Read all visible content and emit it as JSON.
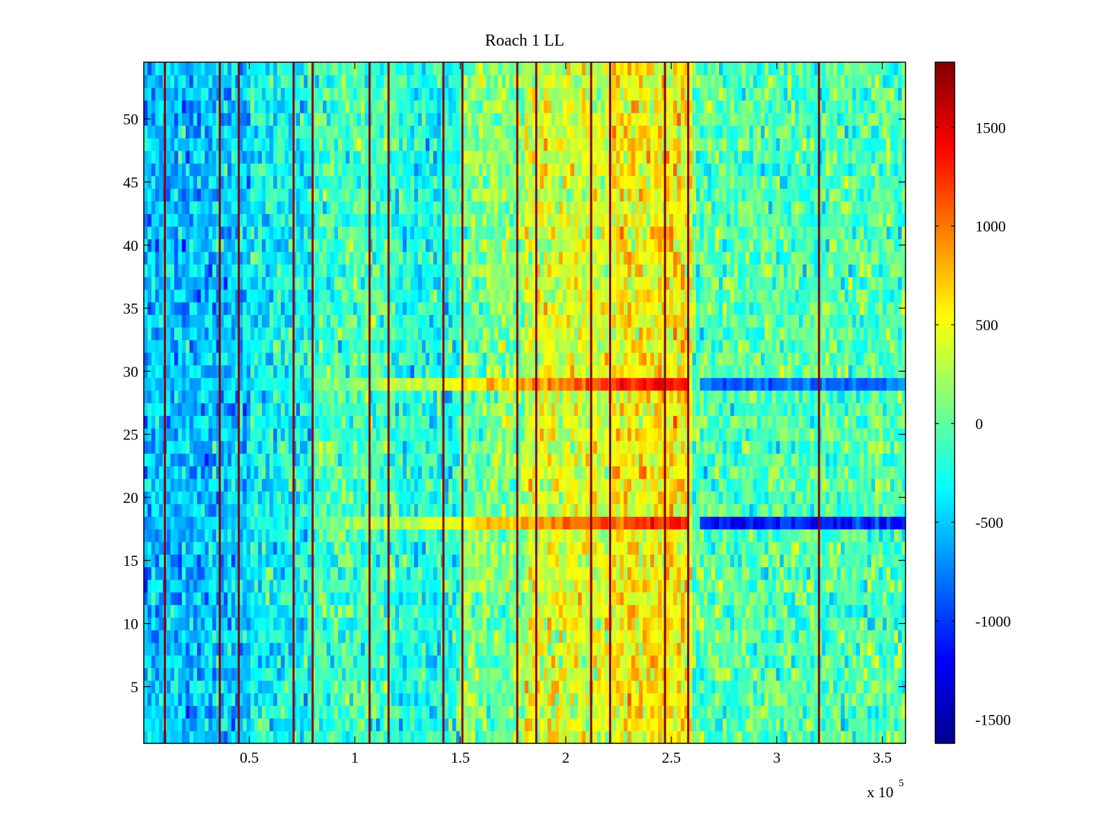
{
  "chart_data": {
    "type": "heatmap",
    "title": "Roach 1 LL",
    "x_range": [
      0,
      361000
    ],
    "y_range": [
      0.5,
      54.5
    ],
    "x_multiplier_label": {
      "prefix": "x 10",
      "exponent": "5"
    },
    "x_ticks": [
      {
        "value": 50000,
        "label": "0.5"
      },
      {
        "value": 100000,
        "label": "1"
      },
      {
        "value": 150000,
        "label": "1.5"
      },
      {
        "value": 200000,
        "label": "2"
      },
      {
        "value": 250000,
        "label": "2.5"
      },
      {
        "value": 300000,
        "label": "3"
      },
      {
        "value": 350000,
        "label": "3.5"
      }
    ],
    "y_ticks": [
      {
        "value": 5,
        "label": "5"
      },
      {
        "value": 10,
        "label": "10"
      },
      {
        "value": 15,
        "label": "15"
      },
      {
        "value": 20,
        "label": "20"
      },
      {
        "value": 25,
        "label": "25"
      },
      {
        "value": 30,
        "label": "30"
      },
      {
        "value": 35,
        "label": "35"
      },
      {
        "value": 40,
        "label": "40"
      },
      {
        "value": 45,
        "label": "45"
      },
      {
        "value": 50,
        "label": "50"
      }
    ],
    "colorbar": {
      "colormap": "jet",
      "range": [
        -1620,
        1830
      ],
      "ticks": [
        {
          "value": 1500,
          "label": "1500"
        },
        {
          "value": 1000,
          "label": "1000"
        },
        {
          "value": 500,
          "label": "500"
        },
        {
          "value": 0,
          "label": "0"
        },
        {
          "value": -500,
          "label": "-500"
        },
        {
          "value": -1000,
          "label": "-1000"
        },
        {
          "value": -1500,
          "label": "-1500"
        }
      ]
    },
    "approx_column_means": [
      {
        "x_start": 0,
        "x_end": 30000,
        "value": -550
      },
      {
        "x_start": 30000,
        "x_end": 50000,
        "value": -500
      },
      {
        "x_start": 50000,
        "x_end": 80000,
        "value": -300
      },
      {
        "x_start": 80000,
        "x_end": 120000,
        "value": -100
      },
      {
        "x_start": 120000,
        "x_end": 150000,
        "value": -250
      },
      {
        "x_start": 150000,
        "x_end": 180000,
        "value": 100
      },
      {
        "x_start": 180000,
        "x_end": 220000,
        "value": 400
      },
      {
        "x_start": 220000,
        "x_end": 260000,
        "value": 550
      },
      {
        "x_start": 260000,
        "x_end": 361000,
        "value": -50
      }
    ],
    "vertical_red_lines_x": [
      10000,
      36000,
      45000,
      71000,
      80000,
      107000,
      116000,
      142000,
      151000,
      177000,
      186000,
      212000,
      221000,
      247000,
      258000,
      320000
    ],
    "highlighted_rows": [
      {
        "row": 29,
        "pattern": "increases from ~0 to ~1500 between x=80000 and x=258000, then drops to about -800 until the end"
      },
      {
        "row": 18,
        "pattern": "increases from ~0 to ~1400 between x=80000 and x=258000, then drops to about -1100 until the end"
      }
    ]
  }
}
